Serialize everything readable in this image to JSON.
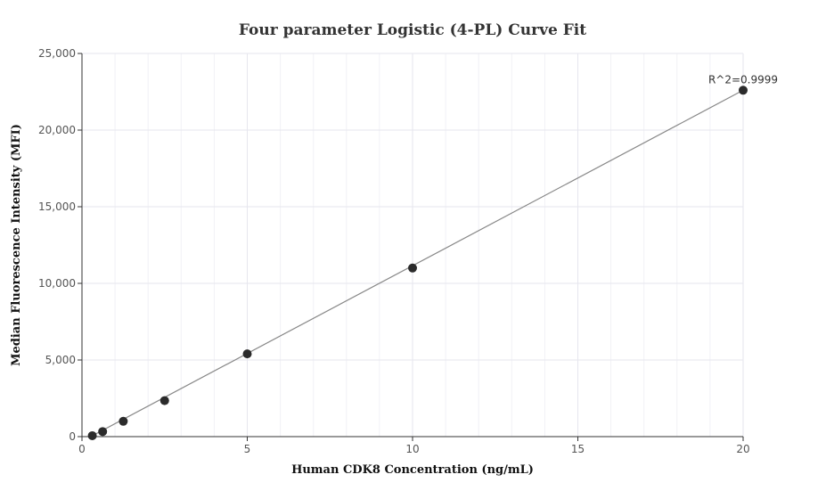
{
  "chart_data": {
    "type": "scatter",
    "title": "Four parameter Logistic (4-PL) Curve Fit",
    "xlabel": "Human CDK8 Concentration (ng/mL)",
    "ylabel": "Median Fluorescence Intensity (MFI)",
    "xlim": [
      0,
      20
    ],
    "ylim": [
      0,
      25000
    ],
    "x_ticks": [
      0,
      5,
      10,
      15,
      20
    ],
    "x_tick_labels": [
      "0",
      "5",
      "10",
      "15",
      "20"
    ],
    "y_ticks": [
      0,
      5000,
      10000,
      15000,
      20000,
      25000
    ],
    "y_tick_labels": [
      "0",
      "5,000",
      "10,000",
      "15,000",
      "20,000",
      "25,000"
    ],
    "grid": true,
    "series": [
      {
        "x": [
          0.3125,
          0.625,
          1.25,
          2.5,
          5,
          10,
          20
        ],
        "y": [
          60,
          330,
          1000,
          2350,
          5400,
          11000,
          22600
        ]
      }
    ],
    "fit_line": {
      "x": [
        0.3125,
        20
      ],
      "y": [
        60,
        22600
      ]
    },
    "annotation": {
      "text": "R^2=0.9999",
      "x": 20,
      "y": 22600
    },
    "colors": {
      "point": "#2b2b2b",
      "line": "#888888",
      "grid": "#e6e6ee",
      "axis": "#333333"
    }
  }
}
